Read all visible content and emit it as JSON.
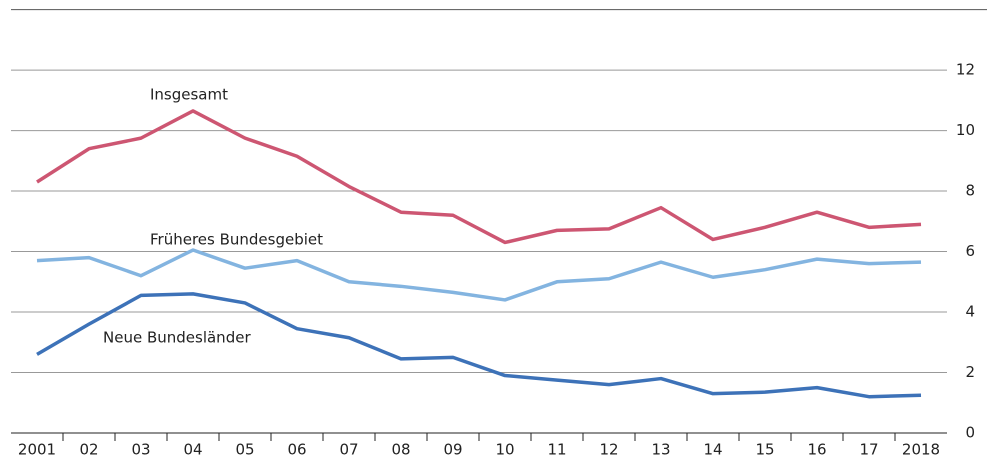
{
  "chart_data": {
    "type": "line",
    "categories": [
      "2001",
      "02",
      "03",
      "04",
      "05",
      "06",
      "07",
      "08",
      "09",
      "10",
      "11",
      "12",
      "13",
      "14",
      "15",
      "16",
      "17",
      "2018"
    ],
    "series": [
      {
        "name": "Insgesamt",
        "color": "#cd5672",
        "values": [
          8.3,
          9.4,
          9.75,
          10.65,
          9.75,
          9.15,
          8.15,
          7.3,
          7.2,
          6.3,
          6.7,
          6.75,
          7.45,
          6.4,
          6.8,
          7.3,
          6.8,
          6.9
        ]
      },
      {
        "name": "Früheres Bundesgebiet",
        "color": "#83b4e0",
        "values": [
          5.7,
          5.8,
          5.2,
          6.05,
          5.45,
          5.7,
          5.0,
          4.85,
          4.65,
          4.4,
          5.0,
          5.1,
          5.65,
          5.15,
          5.4,
          5.75,
          5.6,
          5.65
        ]
      },
      {
        "name": "Neue Bundesländer",
        "color": "#3d72b8",
        "values": [
          2.6,
          3.6,
          4.55,
          4.6,
          4.3,
          3.45,
          3.15,
          2.45,
          2.5,
          1.9,
          1.75,
          1.6,
          1.8,
          1.3,
          1.35,
          1.5,
          1.2,
          1.25
        ]
      }
    ],
    "ylim": [
      0,
      14
    ],
    "yticks": [
      0,
      2,
      4,
      6,
      8,
      10,
      12
    ],
    "grid": true
  }
}
